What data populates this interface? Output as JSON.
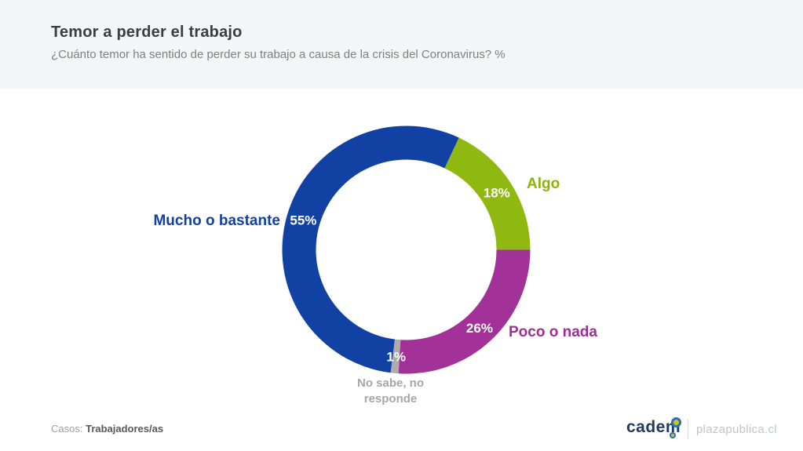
{
  "header": {
    "title": "Temor a perder el trabajo",
    "subtitle": "¿Cuánto temor ha sentido de perder su trabajo a causa de la crisis del Coronavirus? %"
  },
  "chart_data": {
    "type": "pie",
    "subtype": "donut",
    "title": "Temor a perder el trabajo",
    "question": "¿Cuánto temor ha sentido de perder su trabajo a causa de la crisis del Coronavirus? %",
    "units": "%",
    "direction": "clockwise",
    "start_angle_deg": 187.2,
    "inner_radius_ratio": 0.73,
    "slices": [
      {
        "label": "Mucho o bastante",
        "value": 55,
        "color": "#1141A3",
        "label_color": "#1141A3"
      },
      {
        "label": "Algo",
        "value": 18,
        "color": "#8FB811",
        "label_color": "#8CB407"
      },
      {
        "label": "Poco o nada",
        "value": 26,
        "color": "#A23297",
        "label_color": "#A02C96"
      },
      {
        "label": "No sabe, no responde",
        "value": 1,
        "color": "#ACACAC",
        "label_color": "#A6A6A6"
      }
    ],
    "value_label_color": "#FFFFFF",
    "value_label_format": "{value}%",
    "legend_position": "around-chart"
  },
  "footer": {
    "cases_label": "Casos:",
    "cases_value": "Trabajadores/as",
    "logo_text": "cadem",
    "partner_text": "plazapublica.cl"
  },
  "colors": {
    "header_bg": "#F4F5F7",
    "title": "#3D3D3D",
    "subtitle": "#7F7F7F",
    "background": "#FFFFFF"
  }
}
